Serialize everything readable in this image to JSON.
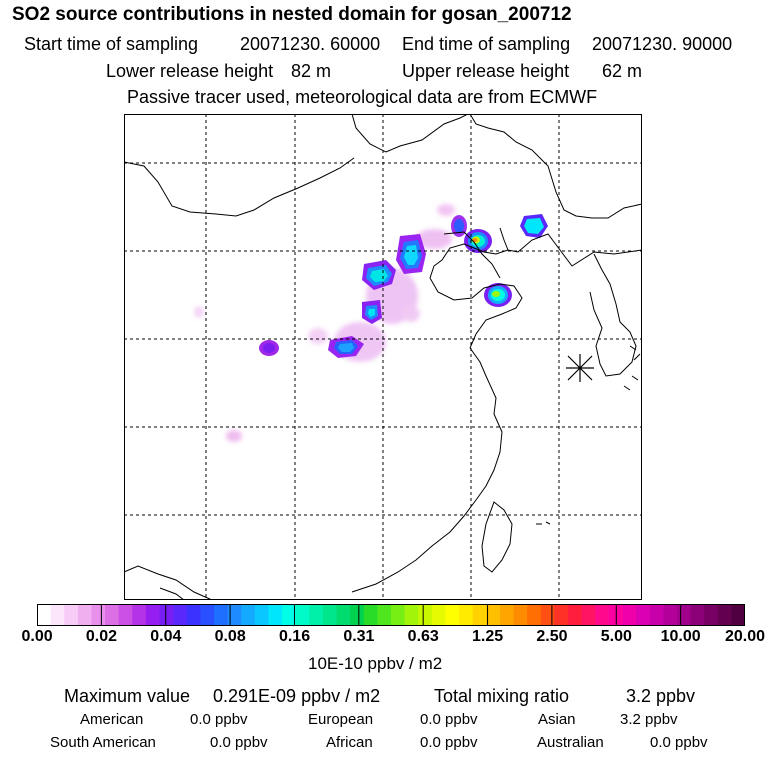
{
  "title": "SO2 source contributions in nested domain for gosan_200712",
  "sampling": {
    "start_label": "Start time of sampling",
    "start_value": "20071230. 60000",
    "end_label": "End time of sampling",
    "end_value": "20071230. 90000"
  },
  "release": {
    "lower_label": "Lower release height",
    "lower_value": "82 m",
    "upper_label": "Upper release height",
    "upper_value": "62 m"
  },
  "note": "Passive tracer used, meteorological data are from ECMWF",
  "colorbar": {
    "tick_labels": [
      "0.00",
      "0.02",
      "0.04",
      "0.08",
      "0.16",
      "0.31",
      "0.63",
      "1.25",
      "2.50",
      "5.00",
      "10.00",
      "20.00"
    ],
    "units": "10E-10 ppbv / m2",
    "colors": [
      "#ffffff",
      "#fbe6fb",
      "#f7ccf7",
      "#f0b0f0",
      "#e890ec",
      "#dc6ee6",
      "#cc50e6",
      "#b432e8",
      "#961ef0",
      "#781ef5",
      "#5a28fa",
      "#3c32ff",
      "#2850ff",
      "#1e6eff",
      "#1e8cff",
      "#14aaff",
      "#0ac8ff",
      "#00e6fa",
      "#00ffe6",
      "#00fac8",
      "#00f0aa",
      "#00e68c",
      "#00dc6e",
      "#00d250",
      "#28dc28",
      "#50e61e",
      "#78ef14",
      "#a0f50a",
      "#c8f800",
      "#e6fa00",
      "#ffff00",
      "#ffeb00",
      "#ffd200",
      "#ffbe00",
      "#ffa500",
      "#ff8c00",
      "#ff6e00",
      "#ff5014",
      "#ff3228",
      "#ff1e3c",
      "#ff1464",
      "#ff0a8c",
      "#ff00a0",
      "#f000aa",
      "#dc00b4",
      "#c800aa",
      "#b4009b",
      "#a0008c",
      "#8c0078",
      "#780064",
      "#640050",
      "#500040"
    ]
  },
  "stats": {
    "max_label": "Maximum value",
    "max_value": "0.291E-09 ppbv / m2",
    "total_label": "Total mixing ratio",
    "total_value": "3.2 ppbv"
  },
  "regions": [
    {
      "name": "American",
      "value": "0.0 ppbv"
    },
    {
      "name": "European",
      "value": "0.0 ppbv"
    },
    {
      "name": "Asian",
      "value": "3.2 ppbv"
    },
    {
      "name": "South American",
      "value": "0.0 ppbv"
    },
    {
      "name": "African",
      "value": "0.0 ppbv"
    },
    {
      "name": "Australian",
      "value": "0.0 ppbv"
    }
  ],
  "receptor_marker": "receptor-asterisk"
}
